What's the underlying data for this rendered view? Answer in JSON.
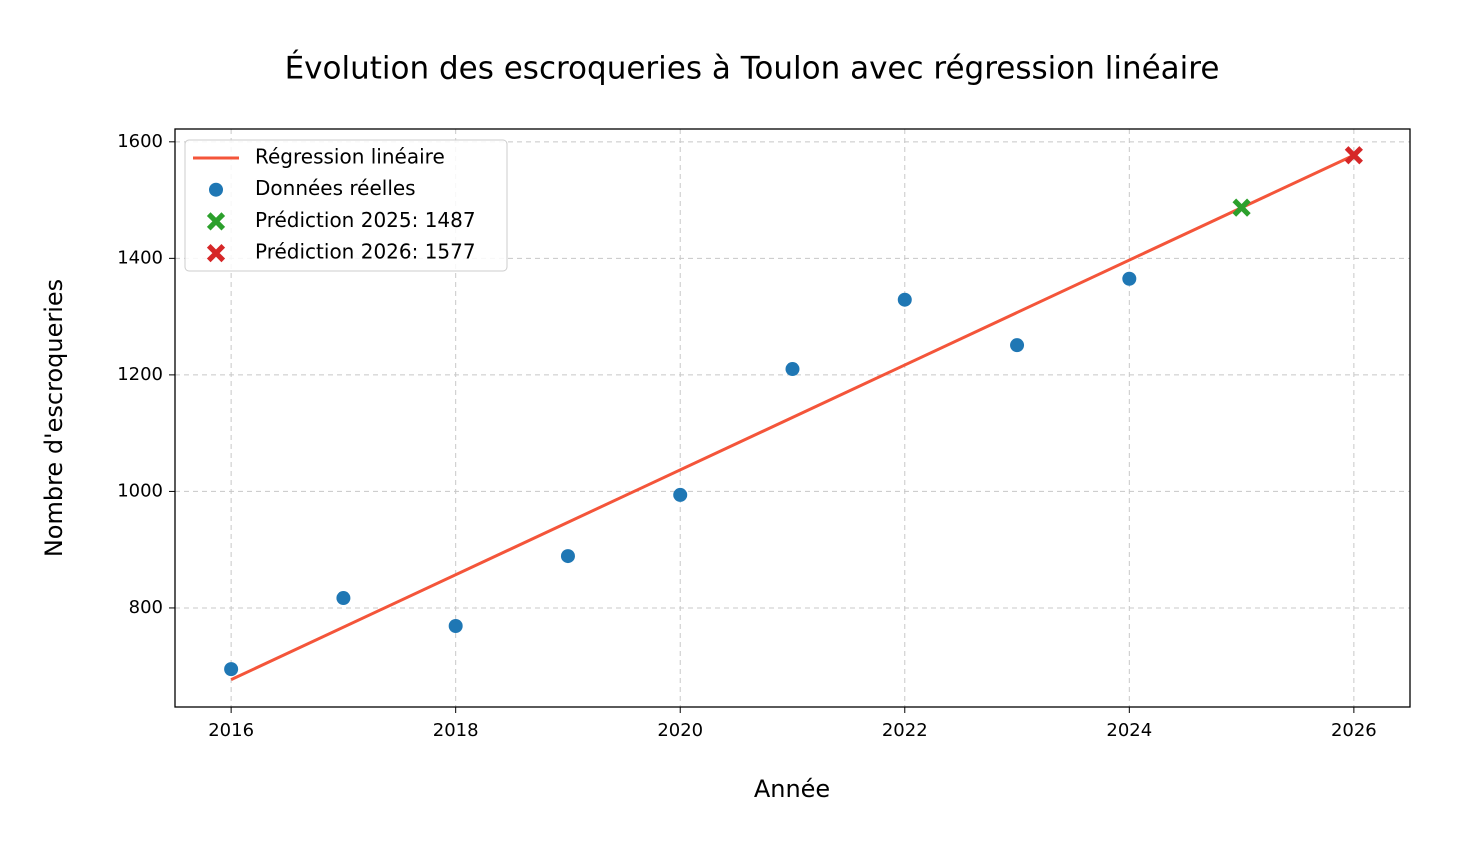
{
  "chart_data": {
    "type": "line",
    "title": "Évolution des escroqueries à Toulon avec régression linéaire",
    "x_label": "Année",
    "y_label": "Nombre d'escroqueries",
    "xlim": [
      2015.5,
      2026.5
    ],
    "ylim": [
      630,
      1622
    ],
    "xticks": [
      2016,
      2018,
      2020,
      2022,
      2024,
      2026
    ],
    "yticks": [
      800,
      1000,
      1200,
      1400,
      1600
    ],
    "grid": true,
    "legend": "upper left",
    "series": [
      {
        "name": "Régression linéaire",
        "color": "#f4553a",
        "mode": "line",
        "x": [
          2016,
          2026
        ],
        "values": [
          677,
          1577
        ]
      },
      {
        "name": "Données réelles",
        "color": "#1f77b4",
        "mode": "points",
        "marker": "circle",
        "x": [
          2016,
          2017,
          2018,
          2019,
          2020,
          2021,
          2022,
          2023,
          2024
        ],
        "values": [
          695,
          817,
          769,
          889,
          994,
          1210,
          1329,
          1251,
          1365
        ]
      },
      {
        "name": "Prédiction 2025: 1487",
        "color": "#2ca02c",
        "mode": "points",
        "marker": "x",
        "x": [
          2025
        ],
        "values": [
          1487
        ]
      },
      {
        "name": "Prédiction 2026: 1577",
        "color": "#d62728",
        "mode": "points",
        "marker": "x",
        "x": [
          2026
        ],
        "values": [
          1577
        ]
      }
    ]
  }
}
